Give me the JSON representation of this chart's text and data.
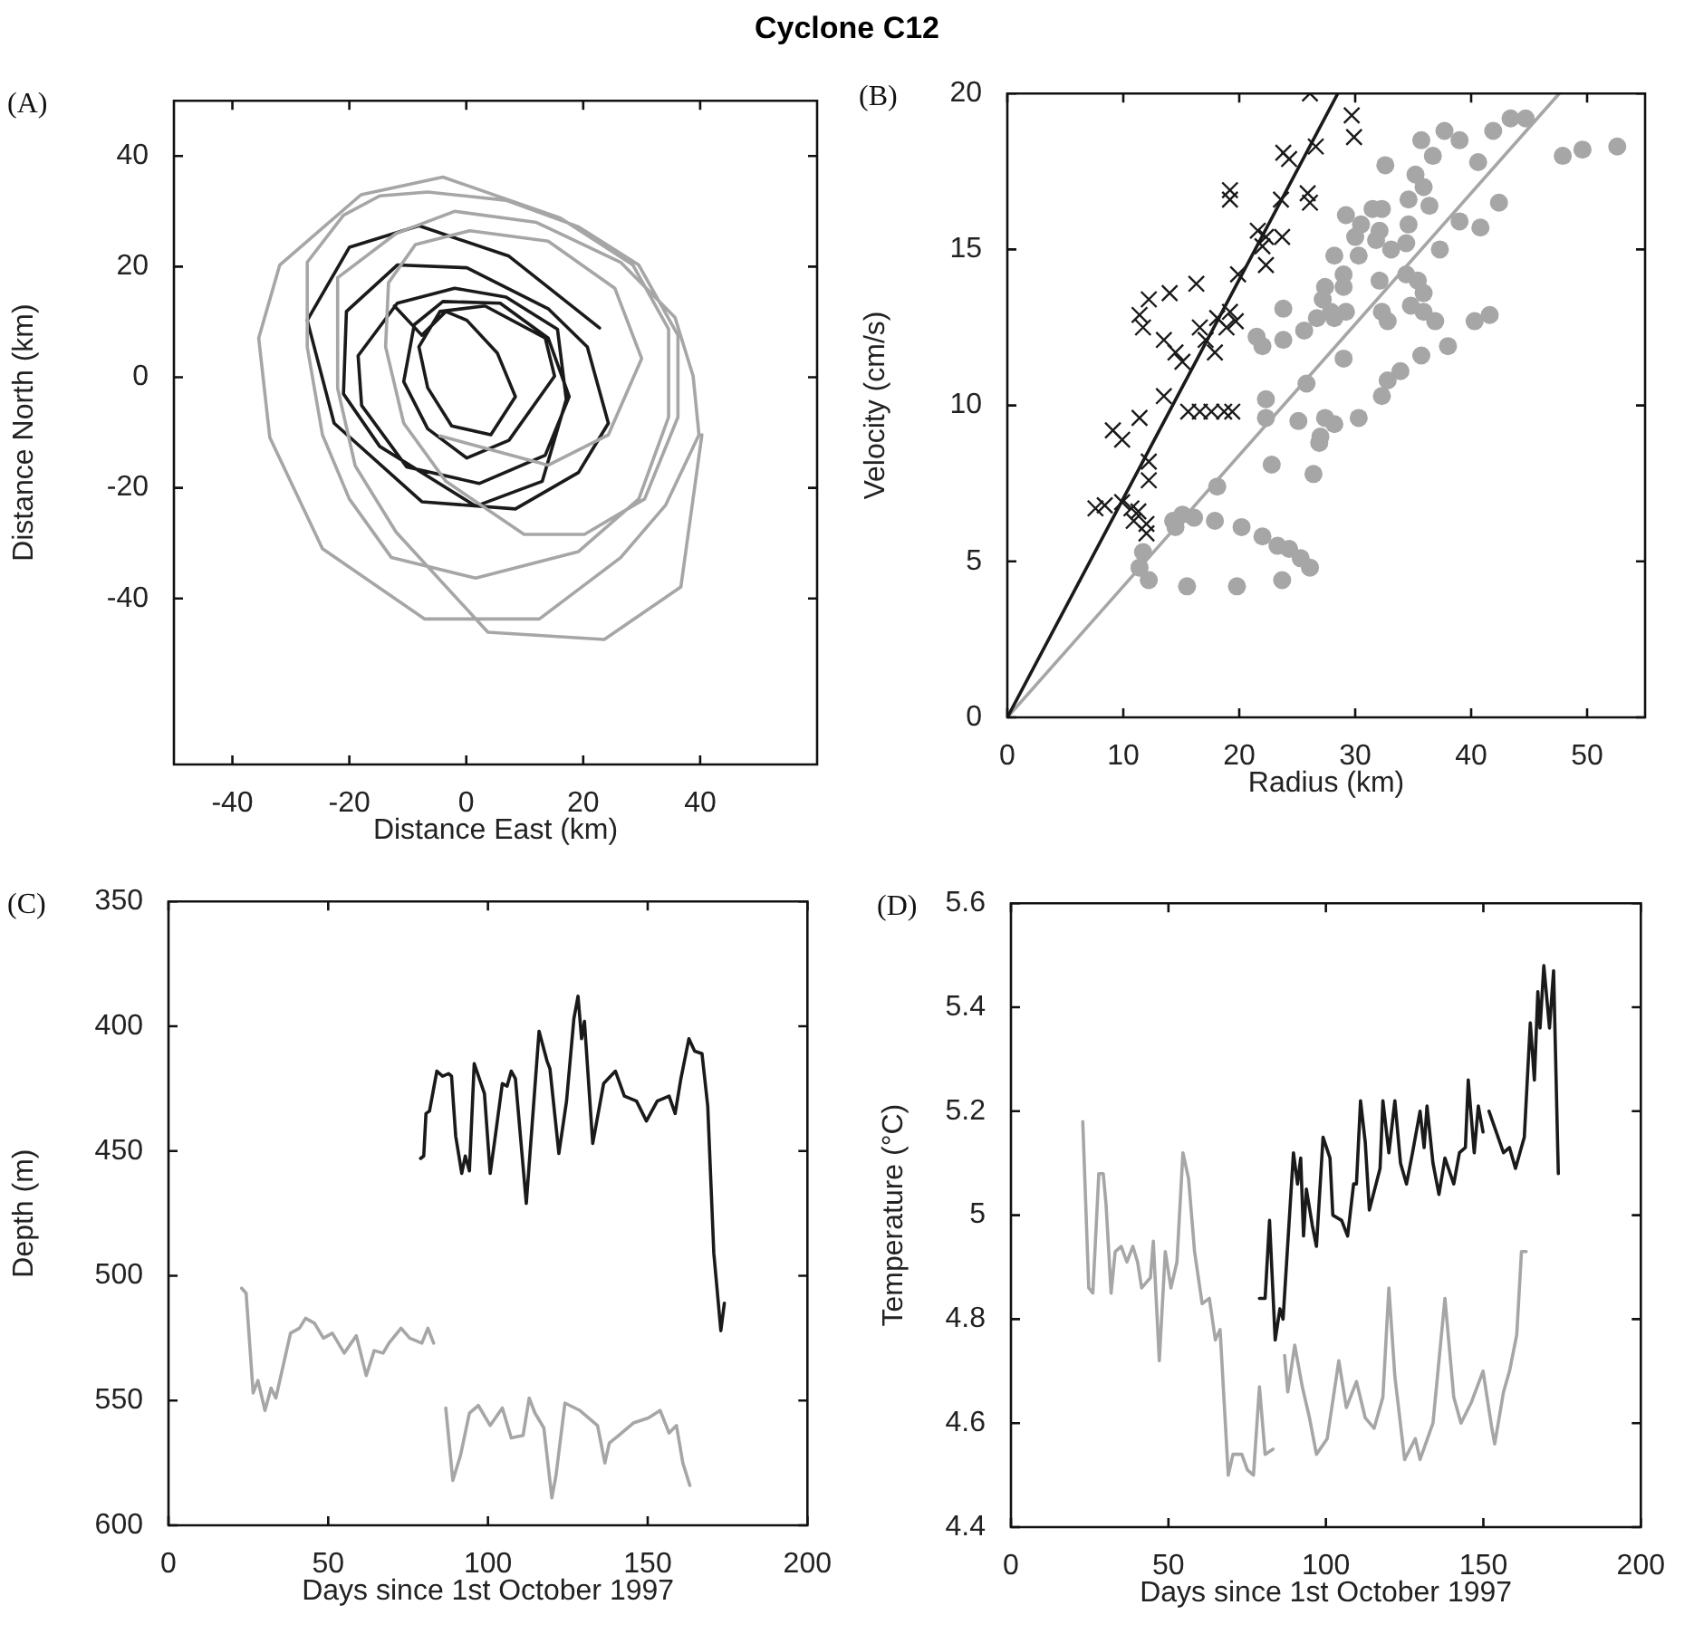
{
  "chart_data": [
    {
      "type": "line",
      "title": "Cyclone C12",
      "xlabel": "Distance East (km)",
      "ylabel": "Distance North (km)",
      "annotations": [
        "(A)"
      ],
      "xlim": [
        -50,
        60
      ],
      "ylim": [
        -70,
        50
      ],
      "xticks": [
        -40,
        -20,
        0,
        20,
        40
      ],
      "yticks": [
        -40,
        -20,
        0,
        20,
        40
      ],
      "series": [
        {
          "color": "#a6a6a6",
          "x": [
            -4.5,
            14.0,
            24.3,
            30.0,
            25.4,
            14.0,
            0.6,
            -8.7,
            -13.3,
            -13.8,
            -10.7,
            -3.5,
            9.9,
            20.2,
            30.5,
            36.2,
            36.2,
            29.5,
            19.2,
            6.8,
            -6.6,
            -14.8,
            -21.0,
            -27.2,
            -27.2,
            -24.6,
            -20.0,
            -12.8,
            1.6,
            19.2,
            29.5,
            34.6,
            34.6,
            28.5,
            16.1,
            -4.0,
            -18,
            -31.9,
            -35.5,
            -33.6,
            -24.6,
            -7.1,
            12.5,
            26.4,
            34.1,
            39.8,
            38.8,
            35.7,
            26.4,
            12,
            -2,
            -12,
            -22,
            -22,
            -19,
            -12,
            3.7,
            23.6,
            36.7,
            40.3
          ],
          "values": [
            -10.6,
            -15.9,
            -10.4,
            3.4,
            16.1,
            24.6,
            26.5,
            24.0,
            17.1,
            5.5,
            -8.3,
            -18.8,
            -28.4,
            -28.4,
            -22.0,
            -7.2,
            7.6,
            20.3,
            27.2,
            32.0,
            33.5,
            32.8,
            29.3,
            20.8,
            5.5,
            -10.4,
            -22.0,
            -32.6,
            -36.3,
            -31.5,
            -22.0,
            -7.2,
            8.7,
            20.3,
            28.8,
            36.2,
            33,
            20.3,
            7.1,
            -10.9,
            -31.0,
            -43.7,
            -43.7,
            -32.6,
            -23.1,
            -10.4,
            0.2,
            10.8,
            20.8,
            28,
            30,
            26,
            18,
            -2,
            -16,
            -28,
            -46.1,
            -47.4,
            -37.9,
            -10.4
          ]
        },
        {
          "color": "#1a1a1a",
          "x": [
            22.8,
            7.3,
            -8.1,
            -20.0,
            -27.2,
            -22.6,
            -7.6,
            8.4,
            19.2,
            24.3,
            20.7,
            14.0,
            0.1,
            -11.8,
            -20.5,
            -21.0,
            -14.8,
            1.6,
            13.0,
            17.1,
            15.6,
            6.8,
            -2.0,
            -11.8,
            -18.5,
            -17.9,
            -10.2,
            2.2,
            13.5,
            17.6,
            14.0,
            5.8,
            -4.0,
            -8.9,
            -10.7,
            -6.6,
            0.1,
            7.3,
            15.1,
            13.5,
            3.2,
            -4.5,
            -8.1,
            -6.6,
            -2.5,
            4.2,
            8.4,
            5.3,
            0.1,
            -3.5,
            -7.6,
            -12.3
          ],
          "values": [
            8.9,
            21.9,
            27.4,
            23.5,
            10.3,
            -8.3,
            -22.5,
            -23.8,
            -17.2,
            -8.3,
            5.5,
            12.4,
            19.8,
            20.3,
            11.9,
            -3.0,
            -12.5,
            -23.3,
            -18.8,
            -4.0,
            8.7,
            14.5,
            16.1,
            13.4,
            3.9,
            -5.1,
            -16.2,
            -19.2,
            -14.1,
            -3.5,
            7.1,
            13.4,
            13.7,
            9.5,
            -0.8,
            -9.3,
            -14.6,
            -11.4,
            0.2,
            7.1,
            12.9,
            11.9,
            5.5,
            -1.9,
            -8.8,
            -10.4,
            -3.5,
            4.4,
            10.3,
            11.9,
            7.6,
            12.9
          ]
        }
      ]
    },
    {
      "type": "scatter",
      "xlabel": "Radius (km)",
      "ylabel": "Velocity (cm/s)",
      "annotations": [
        "(B)"
      ],
      "xlim": [
        0,
        55
      ],
      "ylim": [
        0,
        20
      ],
      "xticks": [
        0,
        10,
        20,
        30,
        40,
        50
      ],
      "yticks": [
        0,
        5,
        10,
        15,
        20
      ],
      "series": [
        {
          "color": "#a6a6a6",
          "marker": "circle",
          "x": [
            52.6,
            49.6,
            47.9,
            44.7,
            43.4,
            41.9,
            42.4,
            40.6,
            39.0,
            37.7,
            35.7,
            36.7,
            32.6,
            35.2,
            35.9,
            34.6,
            36.4,
            32.3,
            31.5,
            29.2,
            30.5,
            32.1,
            34.6,
            39.0,
            40.8,
            30.0,
            31.8,
            33.1,
            34.4,
            30.3,
            37.3,
            28.2,
            29.0,
            32.1,
            34.4,
            35.4,
            35.9,
            29.0,
            27.4,
            27.2,
            27.9,
            29.2,
            26.7,
            28.2,
            23.8,
            32.3,
            32.8,
            34.8,
            35.9,
            36.9,
            41.6,
            40.3,
            25.6,
            23.8,
            21.5,
            22.0,
            38.0,
            35.7,
            29.0,
            33.9,
            32.8,
            25.8,
            32.3,
            22.3,
            22.3,
            25.1,
            27.4,
            28.2,
            30.3,
            27.0,
            26.9,
            22.8,
            26.4,
            18.1,
            15.1,
            16.1,
            14.3,
            14.5,
            17.9,
            20.2,
            22.0,
            23.3,
            24.3,
            25.3,
            26.1,
            11.7,
            11.4,
            12.2,
            15.5,
            19.8,
            23.7
          ],
          "values": [
            18.3,
            18.2,
            18.0,
            19.2,
            19.2,
            18.8,
            16.5,
            17.8,
            18.5,
            18.8,
            18.5,
            18.0,
            17.7,
            17.4,
            17.0,
            16.6,
            16.4,
            16.3,
            16.3,
            16.1,
            15.8,
            15.6,
            15.8,
            15.9,
            15.7,
            15.4,
            15.3,
            15.0,
            15.2,
            14.8,
            15.0,
            14.8,
            14.2,
            14.0,
            14.2,
            14.0,
            13.6,
            13.8,
            13.8,
            13.4,
            13.0,
            13.0,
            12.8,
            12.8,
            13.1,
            13.0,
            12.7,
            13.2,
            13.0,
            12.7,
            12.9,
            12.7,
            12.4,
            12.1,
            12.2,
            11.9,
            11.9,
            11.6,
            11.5,
            11.1,
            10.8,
            10.7,
            10.3,
            10.2,
            9.6,
            9.5,
            9.6,
            9.4,
            9.6,
            9.0,
            8.8,
            8.1,
            7.8,
            7.4,
            6.5,
            6.4,
            6.3,
            6.1,
            6.3,
            6.1,
            5.8,
            5.5,
            5.4,
            5.1,
            4.8,
            5.3,
            4.8,
            4.4,
            4.2,
            4.2,
            4.4
          ]
        },
        {
          "color": "#1a1a1a",
          "marker": "cross",
          "x": [
            26.1,
            29.7,
            29.9,
            23.8,
            24.3,
            26.6,
            19.2,
            19.2,
            23.6,
            25.9,
            26.1,
            21.6,
            22.3,
            23.7,
            22.0,
            22.3,
            19.9,
            16.3,
            14.0,
            12.2,
            11.4,
            11.7,
            13.5,
            14.5,
            15.1,
            16.6,
            17.1,
            17.9,
            18.1,
            19.2,
            19.7,
            18.9,
            15.6,
            16.6,
            17.6,
            18.7,
            19.4,
            13.5,
            11.4,
            9.1,
            9.9,
            12.2,
            12.2,
            8.4,
            7.6,
            9.9,
            10.7,
            11.3,
            10.9,
            12.0,
            12.0
          ],
          "values": [
            20.0,
            19.3,
            18.6,
            18.1,
            17.9,
            18.3,
            16.9,
            16.6,
            16.6,
            16.8,
            16.5,
            15.6,
            15.4,
            15.4,
            15.1,
            14.5,
            14.2,
            13.9,
            13.6,
            13.4,
            12.9,
            12.5,
            12.1,
            11.7,
            11.4,
            12.5,
            12.1,
            11.7,
            12.8,
            13.0,
            12.7,
            12.5,
            9.8,
            9.8,
            9.8,
            9.8,
            9.8,
            10.3,
            9.6,
            9.2,
            8.9,
            8.2,
            7.6,
            6.8,
            6.7,
            6.9,
            6.7,
            6.6,
            6.3,
            6.2,
            5.9
          ]
        },
        {
          "type": "line",
          "color": "#1a1a1a",
          "marker": "none",
          "x": [
            0,
            28.5
          ],
          "values": [
            0,
            20
          ]
        },
        {
          "type": "line",
          "color": "#a6a6a6",
          "marker": "none",
          "x": [
            0,
            47.6
          ],
          "values": [
            0,
            20
          ]
        }
      ]
    },
    {
      "type": "line",
      "xlabel": "Days since 1st October 1997",
      "ylabel": "Depth (m)",
      "annotations": [
        "(C)"
      ],
      "xlim": [
        0,
        200
      ],
      "ylim": [
        600,
        350
      ],
      "xticks": [
        0,
        50,
        100,
        150,
        200
      ],
      "yticks": [
        350,
        400,
        450,
        500,
        550,
        600
      ],
      "series": [
        {
          "color": "#1a1a1a",
          "x": [
            78.9,
            79.9,
            80.6,
            81.7,
            84,
            85.8,
            87.7,
            88.6,
            89.9,
            91.8,
            92.9,
            94.2,
            95.7,
            98.9,
            100.7,
            102.2,
            104.5,
            106,
            107.3,
            108.6,
            112,
            116,
            118.5,
            119.4,
            122.2,
            124.6,
            126.9,
            128.2,
            129.3,
            130.2,
            132.8,
            136.2,
            139.9,
            142.7,
            146.5,
            149.6,
            153,
            156.7,
            158.6,
            160.4,
            162.9,
            164.7,
            167,
            168.8,
            170.7,
            172.9,
            174
          ],
          "values": [
            453,
            452,
            435,
            434,
            418,
            420,
            419,
            420,
            444,
            459,
            452,
            458,
            415,
            427,
            459,
            445,
            423,
            424,
            418,
            421,
            471,
            402,
            414,
            417,
            451,
            430,
            397,
            388,
            405,
            398,
            447,
            423,
            418,
            428,
            430,
            438,
            430,
            428,
            435,
            421,
            405,
            410,
            411,
            432,
            491,
            522,
            511
          ]
        },
        {
          "color": "#a6a6a6",
          "x": [
            22.9,
            24.3,
            26.5,
            28,
            30.2,
            32.1,
            33.6,
            38.2,
            41,
            42.9,
            45.7,
            48.5,
            51.3,
            55,
            58.8,
            61.9,
            64.4,
            67.2,
            69,
            72.8,
            75.5,
            79.3,
            81.2,
            83
          ],
          "values": [
            505,
            507,
            547,
            542,
            554,
            545,
            549,
            523,
            521,
            517,
            519,
            525,
            523,
            531,
            524,
            540,
            530,
            531,
            527,
            521,
            525,
            527,
            521,
            527
          ]
        },
        {
          "color": "#a6a6a6",
          "x": [
            86.8,
            89,
            91.4,
            94.2,
            97,
            100.7,
            104.5,
            107.3,
            111,
            112.9,
            114.7,
            117.5,
            120,
            121.3,
            124.1,
            128.8,
            134.3,
            136.6,
            138,
            140.9,
            145.5,
            150.2,
            153.9,
            156.7,
            159,
            161,
            163.2
          ],
          "values": [
            553,
            582,
            572,
            555,
            552,
            560,
            553,
            565,
            564,
            549,
            555,
            561,
            589,
            580,
            551,
            554,
            560,
            575,
            567,
            564,
            559,
            557,
            554,
            563,
            560,
            575,
            584
          ]
        }
      ]
    },
    {
      "type": "line",
      "xlabel": "Days since 1st October 1997",
      "ylabel": "Temperature (°C)",
      "annotations": [
        "(D)"
      ],
      "xlim": [
        0,
        200
      ],
      "ylim": [
        4.4,
        5.6
      ],
      "xticks": [
        0,
        50,
        100,
        150,
        200
      ],
      "yticks": [
        4.4,
        4.6,
        4.8,
        5,
        5.2,
        5.4,
        5.6
      ],
      "series": [
        {
          "color": "#1a1a1a",
          "x": [
            78.9,
            80.7,
            82.1,
            83.9,
            85.4,
            86.4,
            89.7,
            91,
            92,
            92.9,
            93.8,
            95.7,
            97,
            99.1,
            101.3,
            102.2,
            105,
            106.9,
            108.8,
            109.7,
            111,
            112.5,
            113.8,
            117.2,
            118.1,
            120,
            121.9,
            123.7,
            125.6,
            127.5,
            129.9,
            131.2,
            132.1,
            134,
            135.9,
            137.8,
            140.6,
            142.4,
            144.3,
            145.2,
            147.1,
            148.4,
            149.9
          ],
          "values": [
            4.84,
            4.84,
            4.99,
            4.76,
            4.82,
            4.8,
            5.12,
            5.06,
            5.11,
            4.96,
            5.05,
            4.98,
            4.94,
            5.15,
            5.11,
            5,
            4.99,
            4.96,
            5.06,
            5.06,
            5.22,
            5.14,
            5.01,
            5.09,
            5.22,
            5.12,
            5.22,
            5.1,
            5.06,
            5.12,
            5.2,
            5.13,
            5.21,
            5.1,
            5.04,
            5.11,
            5.06,
            5.12,
            5.13,
            5.26,
            5.12,
            5.21,
            5.16
          ]
        },
        {
          "color": "#1a1a1a",
          "x": [
            151.8,
            156.4,
            158.3,
            160.2,
            163,
            164.9,
            166.2,
            167.3,
            168,
            169.2,
            171,
            172.3,
            173.8
          ],
          "values": [
            5.2,
            5.12,
            5.13,
            5.09,
            5.15,
            5.37,
            5.26,
            5.43,
            5.36,
            5.48,
            5.36,
            5.47,
            5.08
          ]
        },
        {
          "color": "#a6a6a6",
          "x": [
            22.8,
            24.7,
            26,
            27.9,
            29.3,
            30.2,
            31.8,
            33.1,
            35,
            36.8,
            38.7,
            40.2,
            41.5,
            44.3,
            45.2,
            47.1,
            49,
            50.8,
            52.7,
            54.6,
            56.4,
            58.3,
            60.7,
            63,
            64.9,
            66.4,
            69,
            70.5,
            73.3,
            75.1,
            77,
            78.9,
            80.7,
            83.2
          ],
          "values": [
            5.18,
            4.86,
            4.85,
            5.08,
            5.08,
            5.02,
            4.85,
            4.93,
            4.94,
            4.91,
            4.94,
            4.91,
            4.86,
            4.88,
            4.95,
            4.72,
            4.93,
            4.86,
            4.91,
            5.12,
            5.07,
            4.93,
            4.83,
            4.84,
            4.76,
            4.78,
            4.5,
            4.54,
            4.54,
            4.51,
            4.5,
            4.67,
            4.54,
            4.55
          ]
        },
        {
          "color": "#a6a6a6",
          "x": [
            86.9,
            87.9,
            90.1,
            92.5,
            94.8,
            97,
            100.4,
            104.1,
            106.5,
            109.7,
            112.5,
            115.3,
            118.1,
            120,
            121.9,
            125,
            128.4,
            129.9,
            134,
            137.8,
            140.6,
            142.9,
            146.2,
            149.9,
            152.7,
            153.6,
            156.4,
            158.3,
            160.6,
            162.1,
            163.6
          ],
          "values": [
            4.73,
            4.66,
            4.75,
            4.67,
            4.61,
            4.54,
            4.57,
            4.72,
            4.63,
            4.68,
            4.61,
            4.59,
            4.65,
            4.86,
            4.69,
            4.53,
            4.57,
            4.53,
            4.6,
            4.84,
            4.65,
            4.6,
            4.64,
            4.7,
            4.59,
            4.56,
            4.66,
            4.7,
            4.77,
            4.93,
            4.93
          ]
        }
      ]
    }
  ]
}
